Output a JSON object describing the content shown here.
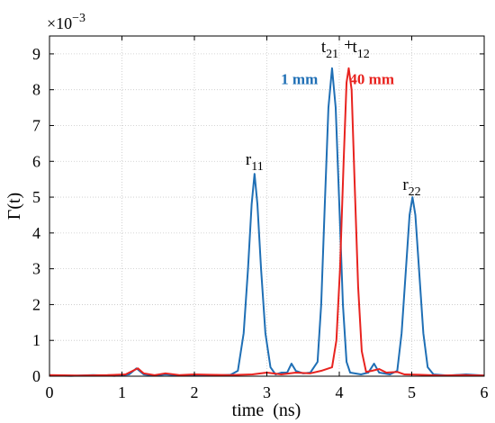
{
  "chart_data": {
    "type": "line",
    "title": "",
    "xlabel": "time  (ns)",
    "ylabel": "Γ(t)",
    "exponent_label": "×10",
    "exponent_power": "−3",
    "xlim": [
      0,
      6
    ],
    "ylim": [
      0,
      9.5
    ],
    "x_ticks": [
      0,
      1,
      2,
      3,
      4,
      5,
      6
    ],
    "y_ticks": [
      0,
      1,
      2,
      3,
      4,
      5,
      6,
      7,
      8,
      9
    ],
    "grid": true,
    "colors": {
      "blue": "#1f6fb5",
      "red": "#e8231f"
    },
    "series": [
      {
        "name": "1 mm",
        "color": "#1f6fb5",
        "points": [
          [
            0,
            0.02
          ],
          [
            0.3,
            0.01
          ],
          [
            0.6,
            0.03
          ],
          [
            0.9,
            0.01
          ],
          [
            1.1,
            0.05
          ],
          [
            1.2,
            0.22
          ],
          [
            1.3,
            0.05
          ],
          [
            1.45,
            0.02
          ],
          [
            1.6,
            0.05
          ],
          [
            1.8,
            0.02
          ],
          [
            2.0,
            0.03
          ],
          [
            2.3,
            0.02
          ],
          [
            2.5,
            0.04
          ],
          [
            2.6,
            0.15
          ],
          [
            2.68,
            1.2
          ],
          [
            2.74,
            3.0
          ],
          [
            2.79,
            4.8
          ],
          [
            2.83,
            5.65
          ],
          [
            2.87,
            4.8
          ],
          [
            2.92,
            3.0
          ],
          [
            2.98,
            1.2
          ],
          [
            3.05,
            0.25
          ],
          [
            3.12,
            0.05
          ],
          [
            3.2,
            0.1
          ],
          [
            3.28,
            0.1
          ],
          [
            3.34,
            0.35
          ],
          [
            3.4,
            0.15
          ],
          [
            3.5,
            0.08
          ],
          [
            3.6,
            0.1
          ],
          [
            3.7,
            0.4
          ],
          [
            3.75,
            2.0
          ],
          [
            3.8,
            4.8
          ],
          [
            3.85,
            7.5
          ],
          [
            3.9,
            8.6
          ],
          [
            3.95,
            7.5
          ],
          [
            4.0,
            4.8
          ],
          [
            4.05,
            2.0
          ],
          [
            4.1,
            0.4
          ],
          [
            4.15,
            0.1
          ],
          [
            4.3,
            0.05
          ],
          [
            4.4,
            0.1
          ],
          [
            4.48,
            0.35
          ],
          [
            4.55,
            0.1
          ],
          [
            4.7,
            0.05
          ],
          [
            4.8,
            0.15
          ],
          [
            4.86,
            1.2
          ],
          [
            4.92,
            3.0
          ],
          [
            4.97,
            4.5
          ],
          [
            5.01,
            5.0
          ],
          [
            5.05,
            4.5
          ],
          [
            5.1,
            3.0
          ],
          [
            5.16,
            1.2
          ],
          [
            5.22,
            0.25
          ],
          [
            5.3,
            0.05
          ],
          [
            5.5,
            0.02
          ],
          [
            5.75,
            0.05
          ],
          [
            6,
            0.02
          ]
        ]
      },
      {
        "name": "40 mm",
        "color": "#e8231f",
        "points": [
          [
            0,
            0.03
          ],
          [
            0.4,
            0.02
          ],
          [
            0.8,
            0.03
          ],
          [
            1.05,
            0.05
          ],
          [
            1.15,
            0.15
          ],
          [
            1.22,
            0.22
          ],
          [
            1.3,
            0.08
          ],
          [
            1.45,
            0.03
          ],
          [
            1.6,
            0.08
          ],
          [
            1.8,
            0.03
          ],
          [
            2.0,
            0.05
          ],
          [
            2.2,
            0.04
          ],
          [
            2.5,
            0.03
          ],
          [
            2.8,
            0.05
          ],
          [
            3.0,
            0.1
          ],
          [
            3.2,
            0.05
          ],
          [
            3.4,
            0.1
          ],
          [
            3.6,
            0.08
          ],
          [
            3.75,
            0.15
          ],
          [
            3.9,
            0.25
          ],
          [
            3.96,
            1.0
          ],
          [
            4.01,
            3.0
          ],
          [
            4.06,
            6.0
          ],
          [
            4.1,
            8.2
          ],
          [
            4.13,
            8.6
          ],
          [
            4.17,
            8.0
          ],
          [
            4.21,
            5.5
          ],
          [
            4.26,
            2.5
          ],
          [
            4.31,
            0.7
          ],
          [
            4.37,
            0.12
          ],
          [
            4.45,
            0.15
          ],
          [
            4.55,
            0.2
          ],
          [
            4.65,
            0.1
          ],
          [
            4.8,
            0.12
          ],
          [
            4.9,
            0.05
          ],
          [
            5.1,
            0.04
          ],
          [
            5.4,
            0.02
          ],
          [
            5.7,
            0.03
          ],
          [
            6,
            0.02
          ]
        ]
      }
    ],
    "annotations": [
      {
        "id": "r11",
        "base": "r",
        "sub": "11",
        "x": 2.83,
        "y": 5.9,
        "color": "#000000"
      },
      {
        "id": "t21",
        "base": "t",
        "sub": "21",
        "x": 3.87,
        "y": 9.05,
        "color": "#000000"
      },
      {
        "id": "plus",
        "base": "+",
        "sub": "",
        "x": 4.13,
        "y": 9.1,
        "color": "#000000"
      },
      {
        "id": "t12",
        "base": "t",
        "sub": "12",
        "x": 4.3,
        "y": 9.05,
        "color": "#000000"
      },
      {
        "id": "r22",
        "base": "r",
        "sub": "22",
        "x": 5.0,
        "y": 5.2,
        "color": "#000000"
      },
      {
        "id": "legend-1mm",
        "base": "1 mm",
        "sub": "",
        "x": 3.45,
        "y": 8.15,
        "color": "#1f6fb5"
      },
      {
        "id": "legend-40mm",
        "base": "40 mm",
        "sub": "",
        "x": 4.45,
        "y": 8.15,
        "color": "#e8231f"
      }
    ]
  }
}
